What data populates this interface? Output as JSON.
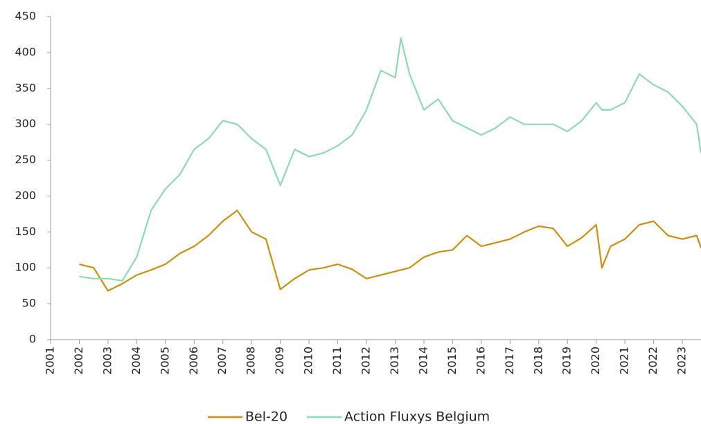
{
  "chart_data": {
    "type": "line",
    "x": [
      2002.0,
      2002.5,
      2003.0,
      2003.5,
      2004.0,
      2004.5,
      2005.0,
      2005.5,
      2006.0,
      2006.5,
      2007.0,
      2007.5,
      2008.0,
      2008.5,
      2009.0,
      2009.5,
      2010.0,
      2010.5,
      2011.0,
      2011.5,
      2012.0,
      2012.5,
      2013.0,
      2013.2,
      2013.5,
      2014.0,
      2014.5,
      2015.0,
      2015.5,
      2016.0,
      2016.5,
      2017.0,
      2017.5,
      2018.0,
      2018.5,
      2019.0,
      2019.5,
      2020.0,
      2020.2,
      2020.5,
      2021.0,
      2021.5,
      2022.0,
      2022.5,
      2023.0,
      2023.5,
      2023.65
    ],
    "series": [
      {
        "name": "Bel-20",
        "color": "#c8900e",
        "values": [
          105,
          100,
          68,
          78,
          90,
          97,
          105,
          120,
          130,
          145,
          165,
          180,
          150,
          140,
          70,
          85,
          97,
          100,
          105,
          98,
          85,
          90,
          95,
          97,
          100,
          115,
          122,
          125,
          145,
          130,
          135,
          140,
          150,
          158,
          155,
          130,
          142,
          160,
          100,
          130,
          140,
          160,
          165,
          145,
          140,
          145,
          128
        ]
      },
      {
        "name": "Action Fluxys Belgium",
        "color": "#8fd9b0",
        "values": [
          88,
          85,
          85,
          82,
          115,
          180,
          210,
          230,
          265,
          280,
          305,
          300,
          280,
          265,
          215,
          265,
          255,
          260,
          270,
          285,
          320,
          375,
          365,
          420,
          370,
          320,
          335,
          305,
          295,
          285,
          295,
          310,
          300,
          300,
          300,
          290,
          305,
          330,
          320,
          320,
          330,
          370,
          355,
          345,
          325,
          300,
          260
        ]
      }
    ],
    "xlim": [
      2001,
      2023.65
    ],
    "xticks": [
      2001,
      2002,
      2003,
      2004,
      2005,
      2006,
      2007,
      2008,
      2009,
      2010,
      2011,
      2012,
      2013,
      2014,
      2015,
      2016,
      2017,
      2018,
      2019,
      2020,
      2021,
      2022,
      2023
    ],
    "ylim": [
      0,
      450
    ],
    "yticks": [
      0,
      50,
      100,
      150,
      200,
      250,
      300,
      350,
      400,
      450
    ],
    "grid": false,
    "legend": "bottom"
  }
}
